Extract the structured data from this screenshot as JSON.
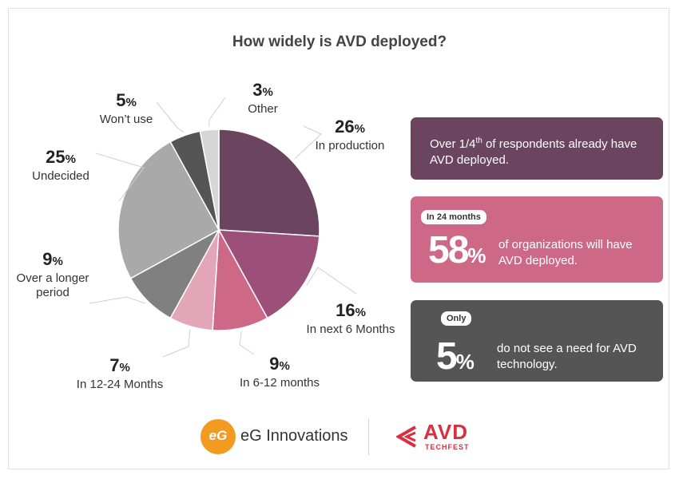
{
  "chart_data": {
    "type": "pie",
    "title": "How widely is AVD deployed?",
    "percent_suffix": "%",
    "slices": [
      {
        "label": "In production",
        "value": 26,
        "color": "#6b4460"
      },
      {
        "label": "In next 6 Months",
        "value": 16,
        "color": "#9c4f78"
      },
      {
        "label": "In 6-12 months",
        "value": 9,
        "color": "#cd6886"
      },
      {
        "label": "In 12-24 Months",
        "value": 7,
        "color": "#e3a6b8"
      },
      {
        "label": "Over a longer period",
        "value": 9,
        "color": "#808080"
      },
      {
        "label": "Undecided",
        "value": 25,
        "color": "#a9a9a9"
      },
      {
        "label": "Won’t use",
        "value": 5,
        "color": "#555555"
      },
      {
        "label": "Other",
        "value": 3,
        "color": "#d6d6d6"
      }
    ]
  },
  "callouts": [
    {
      "text_before": "Over 1/4",
      "sup": "th",
      "text_after": " of respondents already have AVD deployed.",
      "color": "#6b4460"
    },
    {
      "badge": "In 24 months",
      "big_value": "58",
      "big_suffix": "%",
      "text": "of organizations will have AVD deployed.",
      "color": "#cd6886"
    },
    {
      "badge": "Only",
      "big_value": "5",
      "big_suffix": "%",
      "text": "do not see a need for AVD technology.",
      "color": "#555555"
    }
  ],
  "footer": {
    "eg_logo_glyph": "eG",
    "eg_name": "eG Innovations",
    "avd_name": "AVD",
    "avd_sub": "TECHFEST"
  }
}
